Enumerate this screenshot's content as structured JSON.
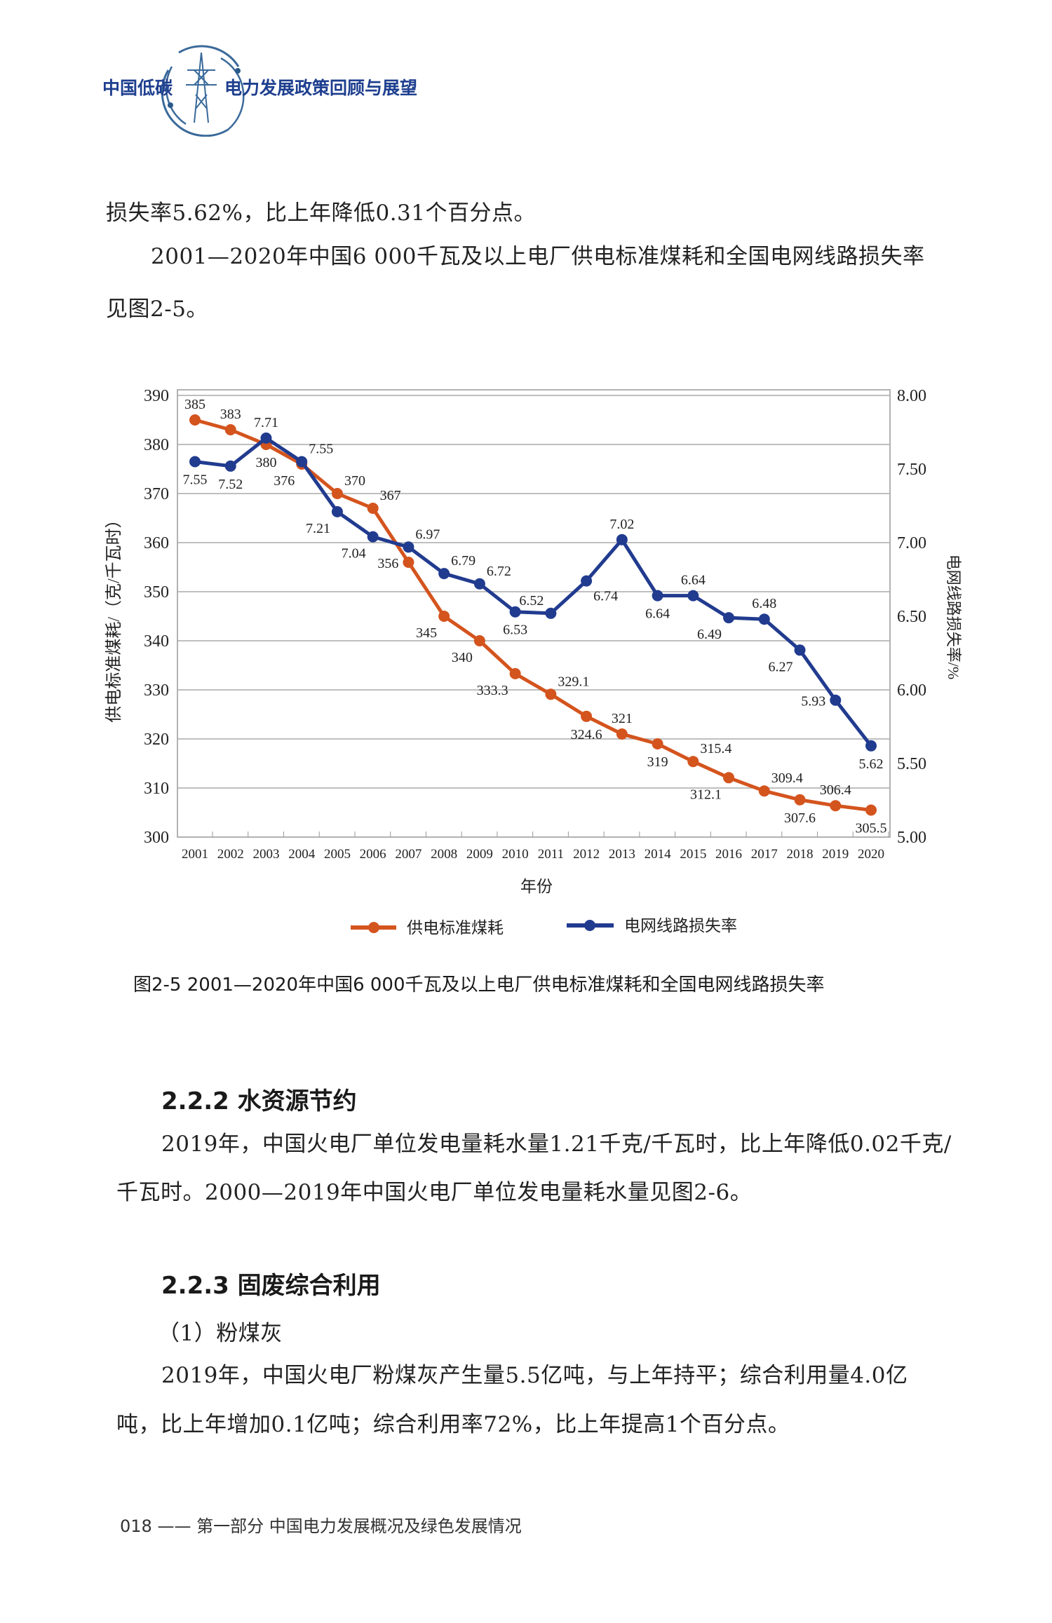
{
  "header": {
    "left": "中国低碳",
    "right": "电力发展政策回顾与展望"
  },
  "paragraphs": {
    "p1": "损失率5.62%，比上年降低0.31个百分点。",
    "p2a": "2001—2020年中国6 000千瓦及以上电厂供电标准煤耗和全国电网线路损失率",
    "p2b": "见图2-5。"
  },
  "chart_data": {
    "type": "line",
    "title": "图2-5   2001—2020年中国6 000千瓦及以上电厂供电标准煤耗和全国电网线路损失率",
    "xlabel": "年份",
    "ylabel": "供电标准煤耗/（克/千瓦时）",
    "y2label": "电网线路损失率/%",
    "x": [
      "2001",
      "2002",
      "2003",
      "2004",
      "2005",
      "2006",
      "2007",
      "2008",
      "2009",
      "2010",
      "2011",
      "2012",
      "2013",
      "2014",
      "2015",
      "2016",
      "2017",
      "2018",
      "2019",
      "2020"
    ],
    "ylim": [
      300,
      390
    ],
    "y2lim": [
      5.0,
      8.0
    ],
    "yticks": [
      "300",
      "310",
      "320",
      "330",
      "340",
      "350",
      "360",
      "370",
      "380",
      "390"
    ],
    "y2ticks": [
      "5.00",
      "5.50",
      "6.00",
      "6.50",
      "7.00",
      "7.50",
      "8.00"
    ],
    "grid": true,
    "legend_position": "bottom",
    "series": [
      {
        "name": "供电标准煤耗",
        "axis": "left",
        "color": "#d4541e",
        "values": [
          385,
          383,
          380,
          376,
          370,
          367,
          356,
          345,
          340,
          333.3,
          329.1,
          324.6,
          321,
          319,
          315.4,
          312.1,
          309.4,
          307.6,
          306.4,
          305.5
        ],
        "labels": [
          "385",
          "383",
          "380",
          "376",
          "370",
          "367",
          "356",
          "345",
          "340",
          "333.3",
          "329.1",
          "324.6",
          "321",
          "319",
          "315.4",
          "312.1",
          "309.4",
          "307.6",
          "306.4",
          "305.5"
        ]
      },
      {
        "name": "电网线路损失率",
        "axis": "right",
        "color": "#213b8f",
        "values": [
          7.55,
          7.52,
          7.71,
          7.55,
          7.21,
          7.04,
          6.97,
          6.79,
          6.72,
          6.53,
          6.52,
          6.74,
          7.02,
          6.64,
          6.64,
          6.49,
          6.48,
          6.27,
          5.93,
          5.62
        ],
        "labels": [
          "7.55",
          "7.52",
          "7.71",
          "7.55",
          "7.21",
          "7.04",
          "6.97",
          "6.79",
          "6.72",
          "6.53",
          "6.52",
          "6.74",
          "7.02",
          "6.64",
          "6.64",
          "6.49",
          "6.48",
          "6.27",
          "5.93",
          "5.62"
        ]
      }
    ]
  },
  "section222": {
    "heading": "2.2.2   水资源节约",
    "p1": "2019年，中国火电厂单位发电量耗水量1.21千克/千瓦时，比上年降低0.02千克/",
    "p2": "千瓦时。2000—2019年中国火电厂单位发电量耗水量见图2-6。"
  },
  "section223": {
    "heading": "2.2.3   固废综合利用",
    "sub": "（1）粉煤灰",
    "p1": "2019年，中国火电厂粉煤灰产生量5.5亿吨，与上年持平；综合利用量4.0亿",
    "p2": "吨，比上年增加0.1亿吨；综合利用率72%，比上年提高1个百分点。"
  },
  "footer": {
    "text": "018 —— 第一部分   中国电力发展概况及绿色发展情况"
  }
}
